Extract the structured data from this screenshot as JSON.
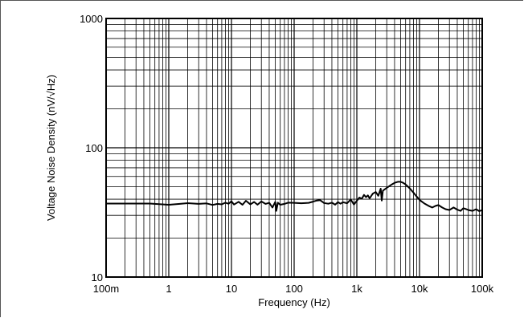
{
  "chart_data": {
    "type": "line",
    "title": "",
    "xlabel": "Frequency (Hz)",
    "ylabel": "Voltage Noise Density (nV/√Hz)",
    "x_scale": "log",
    "y_scale": "log",
    "xlim": [
      0.1,
      100000
    ],
    "ylim": [
      10,
      1000
    ],
    "grid": true,
    "x_ticks": [
      {
        "value": 0.1,
        "label": "100m"
      },
      {
        "value": 1,
        "label": "1"
      },
      {
        "value": 10,
        "label": "10"
      },
      {
        "value": 100,
        "label": "100"
      },
      {
        "value": 1000,
        "label": "1k"
      },
      {
        "value": 10000,
        "label": "10k"
      },
      {
        "value": 100000,
        "label": "100k"
      }
    ],
    "y_ticks": [
      {
        "value": 10,
        "label": "10"
      },
      {
        "value": 100,
        "label": "100"
      },
      {
        "value": 1000,
        "label": "1000"
      }
    ],
    "series": [
      {
        "name": "",
        "color": "#000000",
        "x": [
          0.1,
          0.2,
          0.5,
          1,
          1.5,
          2,
          3,
          4,
          5,
          6,
          7,
          8,
          9,
          10,
          11,
          13,
          15,
          17,
          20,
          23,
          26,
          30,
          35,
          40,
          45,
          50,
          52,
          55,
          60,
          70,
          80,
          100,
          130,
          170,
          200,
          230,
          260,
          300,
          350,
          400,
          450,
          500,
          550,
          600,
          700,
          800,
          900,
          1000,
          1100,
          1200,
          1300,
          1400,
          1500,
          1600,
          1800,
          2000,
          2200,
          2400,
          2500,
          2600,
          3000,
          3500,
          4000,
          4500,
          5000,
          5500,
          6000,
          7000,
          8000,
          9000,
          10000,
          11000,
          12000,
          14000,
          16000,
          18000,
          20000,
          23000,
          26000,
          30000,
          35000,
          40000,
          45000,
          50000,
          55000,
          60000,
          70000,
          80000,
          90000,
          100000
        ],
        "y": [
          37,
          37,
          37,
          36.2,
          36.8,
          37.3,
          36.8,
          37.1,
          36.1,
          36.8,
          36.5,
          37.6,
          36.9,
          38.5,
          36.4,
          38.2,
          36.2,
          38.9,
          36.5,
          38.1,
          36.3,
          38.4,
          36.8,
          37.5,
          34.5,
          38.1,
          32.5,
          37.6,
          36.2,
          36.8,
          37.6,
          37.5,
          37.2,
          37.5,
          38.3,
          39.1,
          39.3,
          37.4,
          36.9,
          37.6,
          36.3,
          38,
          36.9,
          37.9,
          37.2,
          39.8,
          36.4,
          38.9,
          41.2,
          40.3,
          43.2,
          41.5,
          42.8,
          40.6,
          44.2,
          45.5,
          42.5,
          48.2,
          39,
          46.5,
          49,
          51.5,
          53.5,
          54.5,
          54.5,
          53.5,
          52,
          48.5,
          45,
          42,
          39.5,
          38.2,
          37,
          35.5,
          34.5,
          35.5,
          36,
          34.5,
          33.5,
          33,
          34.5,
          33.2,
          32.5,
          34,
          33.6,
          33,
          32.5,
          33.5,
          32.3,
          33
        ]
      }
    ]
  }
}
